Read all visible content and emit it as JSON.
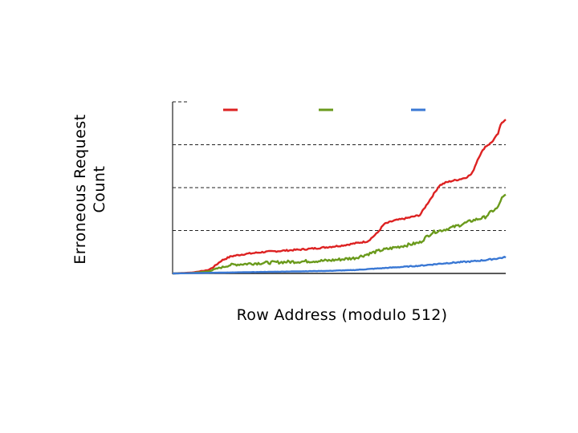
{
  "chart_data": {
    "type": "line",
    "title": "",
    "xlabel": "Row Address (modulo 512)",
    "ylabel": [
      "Erroneous Request",
      "Count"
    ],
    "xlim": [
      0,
      512
    ],
    "ylim": [
      0,
      4
    ],
    "grid": true,
    "legend": "top",
    "series": [
      {
        "color": "#dd2222",
        "x": [
          0,
          30,
          55,
          62,
          75,
          90,
          110,
          140,
          170,
          200,
          230,
          260,
          280,
          300,
          315,
          325,
          340,
          360,
          380,
          400,
          410,
          420,
          430,
          440,
          450,
          460,
          470,
          480,
          490,
          500,
          505,
          512
        ],
        "values": [
          0.0,
          0.02,
          0.08,
          0.14,
          0.3,
          0.4,
          0.45,
          0.5,
          0.53,
          0.56,
          0.6,
          0.65,
          0.7,
          0.75,
          0.95,
          1.15,
          1.23,
          1.29,
          1.36,
          1.82,
          2.05,
          2.12,
          2.16,
          2.19,
          2.23,
          2.32,
          2.7,
          2.95,
          3.05,
          3.25,
          3.5,
          3.6
        ]
      },
      {
        "color": "#6a9a1c",
        "x": [
          0,
          30,
          55,
          70,
          90,
          120,
          160,
          200,
          240,
          280,
          300,
          320,
          340,
          360,
          380,
          390,
          400,
          420,
          440,
          460,
          480,
          490,
          500,
          505,
          512
        ],
        "values": [
          0.0,
          0.01,
          0.05,
          0.12,
          0.2,
          0.23,
          0.26,
          0.28,
          0.3,
          0.36,
          0.45,
          0.54,
          0.6,
          0.66,
          0.72,
          0.85,
          0.96,
          1.03,
          1.12,
          1.23,
          1.31,
          1.44,
          1.53,
          1.74,
          1.82
        ]
      },
      {
        "color": "#3a78d4",
        "x": [
          0,
          40,
          80,
          120,
          160,
          200,
          240,
          280,
          300,
          320,
          340,
          360,
          380,
          400,
          420,
          440,
          460,
          480,
          500,
          512
        ],
        "values": [
          0.0,
          0.01,
          0.02,
          0.03,
          0.04,
          0.05,
          0.06,
          0.08,
          0.1,
          0.12,
          0.14,
          0.16,
          0.18,
          0.21,
          0.24,
          0.26,
          0.28,
          0.31,
          0.35,
          0.38
        ]
      }
    ]
  }
}
